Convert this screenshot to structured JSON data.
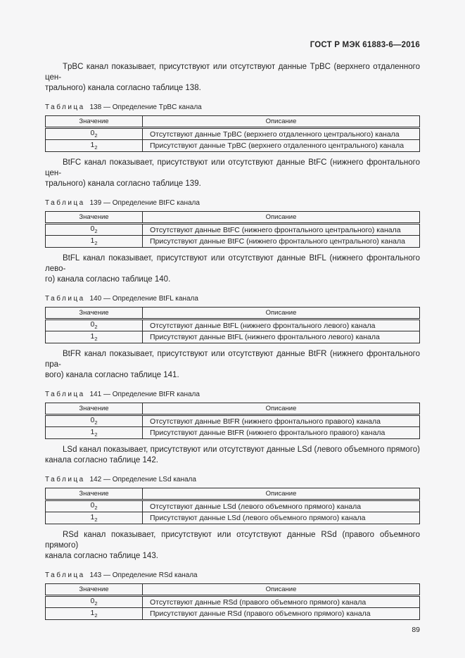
{
  "page": {
    "header": "ГОСТ Р МЭК 61883-6—2016",
    "number": "89",
    "colors": {
      "background": "#f6f6f7",
      "text": "#242424",
      "line": "#2b2b2b"
    }
  },
  "table_headers": {
    "value": "Значение",
    "description": "Описание"
  },
  "sections": [
    {
      "channel": "TpBC",
      "paragraph_lines": [
        "TpBC канал показывает, присутствуют или отсутствуют данные TpBC (верхнего отдаленного цен-",
        "трального) канала согласно таблице 138."
      ],
      "caption_label": "Таблица",
      "caption_rest": "138 — Определение TpBC канала",
      "rows": [
        {
          "value": "0",
          "value_sub": "2",
          "description": "Отсутствуют данные TpBC (верхнего отдаленного центрального) канала"
        },
        {
          "value": "1",
          "value_sub": "2",
          "description": "Присутствуют данные TpBC (верхнего отдаленного центрального) канала"
        }
      ]
    },
    {
      "channel": "BtFC",
      "paragraph_lines": [
        "BtFC канал показывает, присутствуют или отсутствуют данные BtFC (нижнего фронтального цен-",
        "трального) канала согласно таблице 139."
      ],
      "caption_label": "Таблица",
      "caption_rest": "139 — Определение BtFC канала",
      "rows": [
        {
          "value": "0",
          "value_sub": "2",
          "description": "Отсутствуют данные BtFC (нижнего фронтального центрального) канала"
        },
        {
          "value": "1",
          "value_sub": "2",
          "description": "Присутствуют данные BtFC (нижнего фронтального центрального) канала"
        }
      ]
    },
    {
      "channel": "BtFL",
      "paragraph_lines": [
        "BtFL канал показывает, присутствуют или отсутствуют данные BtFL (нижнего фронтального лево-",
        "го) канала согласно таблице 140."
      ],
      "caption_label": "Таблица",
      "caption_rest": "140 — Определение BtFL канала",
      "rows": [
        {
          "value": "0",
          "value_sub": "2",
          "description": "Отсутствуют данные BtFL (нижнего фронтального левого) канала"
        },
        {
          "value": "1",
          "value_sub": "2",
          "description": "Присутствуют данные BtFL (нижнего фронтального левого) канала"
        }
      ]
    },
    {
      "channel": "BtFR",
      "paragraph_lines": [
        "BtFR канал показывает, присутствуют или отсутствуют данные BtFR (нижнего фронтального пра-",
        "вого) канала согласно таблице 141."
      ],
      "caption_label": "Таблица",
      "caption_rest": "141 — Определение BtFR канала",
      "rows": [
        {
          "value": "0",
          "value_sub": "2",
          "description": "Отсутствуют данные BtFR (нижнего фронтального правого) канала"
        },
        {
          "value": "1",
          "value_sub": "2",
          "description": "Присутствуют данные BtFR (нижнего фронтального правого) канала"
        }
      ]
    },
    {
      "channel": "LSd",
      "paragraph_lines": [
        "LSd канал показывает, присутствуют или отсутствуют данные LSd (левого объемного прямого)",
        "канала согласно таблице 142."
      ],
      "caption_label": "Таблица",
      "caption_rest": "142 — Определение LSd канала",
      "rows": [
        {
          "value": "0",
          "value_sub": "2",
          "description": "Отсутствуют данные LSd (левого объемного прямого) канала"
        },
        {
          "value": "1",
          "value_sub": "2",
          "description": "Присутствуют данные LSd (левого объемного прямого) канала"
        }
      ]
    },
    {
      "channel": "RSd",
      "paragraph_lines": [
        "RSd канал показывает, присутствуют или отсутствуют данные RSd (правого объемного прямого)",
        "канала согласно таблице 143."
      ],
      "caption_label": "Таблица",
      "caption_rest": "143 — Определение RSd канала",
      "rows": [
        {
          "value": "0",
          "value_sub": "2",
          "description": "Отсутствуют данные RSd (правого объемного прямого) канала"
        },
        {
          "value": "1",
          "value_sub": "2",
          "description": "Присутствуют данные RSd (правого объемного прямого) канала"
        }
      ]
    }
  ]
}
